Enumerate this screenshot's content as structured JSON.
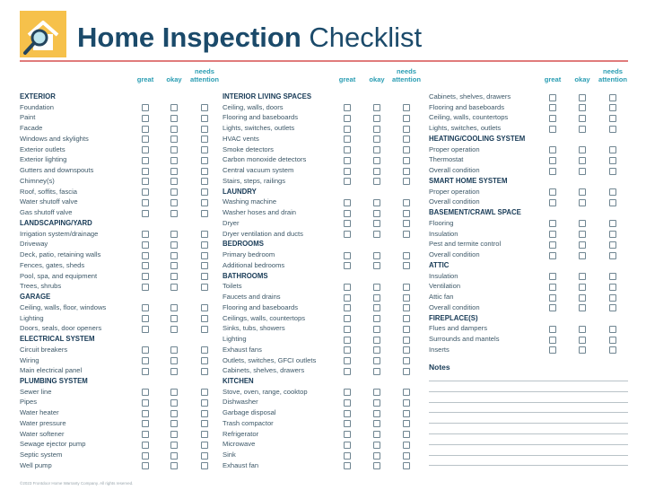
{
  "header": {
    "title_bold": "Home Inspection",
    "title_light": "Checklist"
  },
  "rating_labels": [
    "great",
    "okay",
    "needs attention"
  ],
  "columns": [
    {
      "sections": [
        {
          "heading": "EXTERIOR",
          "items": [
            "Foundation",
            "Paint",
            "Facade",
            "Windows and skylights",
            "Exterior outlets",
            "Exterior lighting",
            "Gutters and downspouts",
            "Chimney(s)",
            "Roof, soffits, fascia",
            "Water shutoff valve",
            "Gas shutoff valve"
          ]
        },
        {
          "heading": "LANDSCAPING/YARD",
          "items": [
            "Irrigation system/drainage",
            "Driveway",
            "Deck, patio, retaining walls",
            "Fences, gates, sheds",
            "Pool, spa, and equipment",
            "Trees, shrubs"
          ]
        },
        {
          "heading": "GARAGE",
          "items": [
            "Ceiling, walls, floor, windows",
            "Lighting",
            "Doors, seals, door openers"
          ]
        },
        {
          "heading": "ELECTRICAL SYSTEM",
          "items": [
            "Circuit breakers",
            "Wiring",
            "Main electrical panel"
          ]
        },
        {
          "heading": "PLUMBING SYSTEM",
          "items": [
            "Sewer line",
            "Pipes",
            "Water heater",
            "Water pressure",
            "Water softener",
            "Sewage ejector pump",
            "Septic system",
            "Well pump"
          ]
        }
      ]
    },
    {
      "sections": [
        {
          "heading": "INTERIOR LIVING SPACES",
          "items": [
            "Ceiling, walls, doors",
            "Flooring and baseboards",
            "Lights, switches, outlets",
            "HVAC vents",
            "Smoke detectors",
            "Carbon monoxide detectors",
            "Central vacuum system",
            "Stairs, steps, railings"
          ]
        },
        {
          "heading": "LAUNDRY",
          "items": [
            "Washing machine",
            "Washer hoses and drain",
            "Dryer",
            "Dryer ventilation and ducts"
          ]
        },
        {
          "heading": "BEDROOMS",
          "items": [
            "Primary bedroom",
            "Additional bedrooms"
          ]
        },
        {
          "heading": "BATHROOMS",
          "items": [
            "Toilets",
            "Faucets and drains",
            "Flooring and baseboards",
            "Ceilings, walls, countertops",
            "Sinks, tubs, showers",
            "Lighting",
            "Exhaust fans",
            "Outlets, switches, GFCI outlets",
            "Cabinets, shelves, drawers"
          ]
        },
        {
          "heading": "KITCHEN",
          "items": [
            "Stove, oven, range, cooktop",
            "Dishwasher",
            "Garbage disposal",
            "Trash compactor",
            "Refrigerator",
            "Microwave",
            "Sink",
            "Exhaust fan"
          ]
        }
      ]
    },
    {
      "sections": [
        {
          "items": [
            "Cabinets, shelves, drawers",
            "Flooring and baseboards",
            "Ceiling, walls, countertops",
            "Lights, switches, outlets"
          ]
        },
        {
          "heading": "HEATING/COOLING SYSTEM",
          "items": [
            "Proper operation",
            "Thermostat",
            "Overall condition"
          ]
        },
        {
          "heading": "SMART HOME SYSTEM",
          "items": [
            "Proper operation",
            "Overall condition"
          ]
        },
        {
          "heading": "BASEMENT/CRAWL SPACE",
          "items": [
            "Flooring",
            "Insulation",
            "Pest and termite control",
            "Overall condition"
          ]
        },
        {
          "heading": "ATTIC",
          "items": [
            "Insulation",
            "Ventilation",
            "Attic fan",
            "Overall condition"
          ]
        },
        {
          "heading": "FIREPLACE(S)",
          "items": [
            "Flues and dampers",
            "Surrounds and mantels",
            "Inserts"
          ]
        }
      ]
    }
  ],
  "notes_label": "Notes",
  "footer": "©2023 Frontdoor Home Warranty Company. All rights reserved."
}
